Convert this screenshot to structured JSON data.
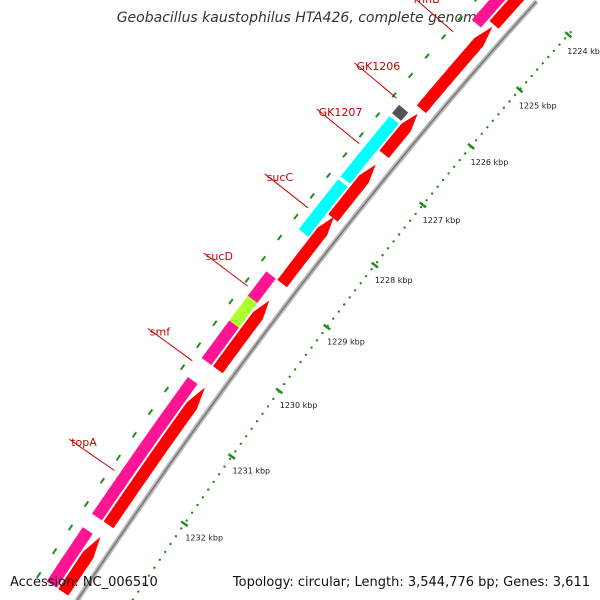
{
  "title": "Geobacillus kaustophilus HTA426, complete genome",
  "footer": {
    "accession": "Accession: NC_006510",
    "info": "Topology: circular; Length: 3,544,776 bp; Genes: 3,611"
  },
  "colors": {
    "cds": "#ff0000",
    "gene": "#ff1493",
    "backbone": "#999999",
    "tick": "#228b22",
    "label": "#cc0000",
    "sucD": "#00ffff",
    "smf": "#adff2f",
    "GK1207": "#555555",
    "tRNA": "#cccccc"
  },
  "ticks": [
    "1224 kbp",
    "1225 kbp",
    "1226 kbp",
    "1227 kbp",
    "1228 kbp",
    "1229 kbp",
    "1230 kbp",
    "1231 kbp",
    "1232 kbp"
  ],
  "genes": [
    "rnhB",
    "GK1206",
    "GK1207",
    "sucC",
    "sucD",
    "smf",
    "topA"
  ]
}
